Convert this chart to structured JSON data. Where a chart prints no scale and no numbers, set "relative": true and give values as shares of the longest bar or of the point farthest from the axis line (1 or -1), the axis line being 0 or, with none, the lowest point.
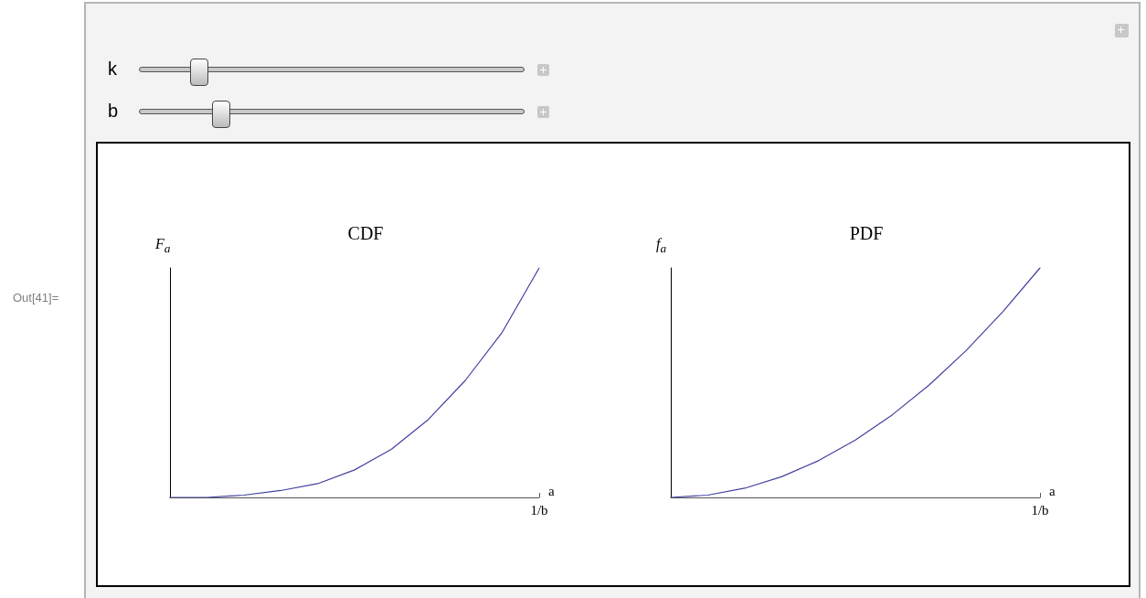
{
  "chart_data": [
    {
      "type": "other",
      "annotations": [
        "Out[41]=",
        "k",
        "b"
      ]
    },
    {
      "type": "line",
      "title": "CDF",
      "xlabel": "a",
      "ylabel": "F$_{a}$",
      "relative": true,
      "marker": "none",
      "annotations": [
        "1/b"
      ],
      "categories": [
        null,
        null,
        null,
        null,
        null,
        null,
        null,
        null,
        null,
        null,
        null
      ],
      "series": [
        {
          "color": "#4040a0",
          "values": [
            0,
            0,
            0.01,
            0.03,
            0.06,
            0.12,
            0.21,
            0.34,
            0.51,
            0.72,
            1
          ]
        }
      ]
    },
    {
      "type": "line",
      "title": "PDF",
      "xlabel": "a",
      "ylabel": "f$_{a}$",
      "relative": true,
      "marker": "none",
      "annotations": [
        "1/b"
      ],
      "categories": [
        null,
        null,
        null,
        null,
        null,
        null,
        null,
        null,
        null,
        null,
        null
      ],
      "series": [
        {
          "color": "#4040a0",
          "values": [
            0,
            0.01,
            0.04,
            0.09,
            0.16,
            0.25,
            0.36,
            0.49,
            0.64,
            0.81,
            1
          ]
        }
      ]
    }
  ]
}
